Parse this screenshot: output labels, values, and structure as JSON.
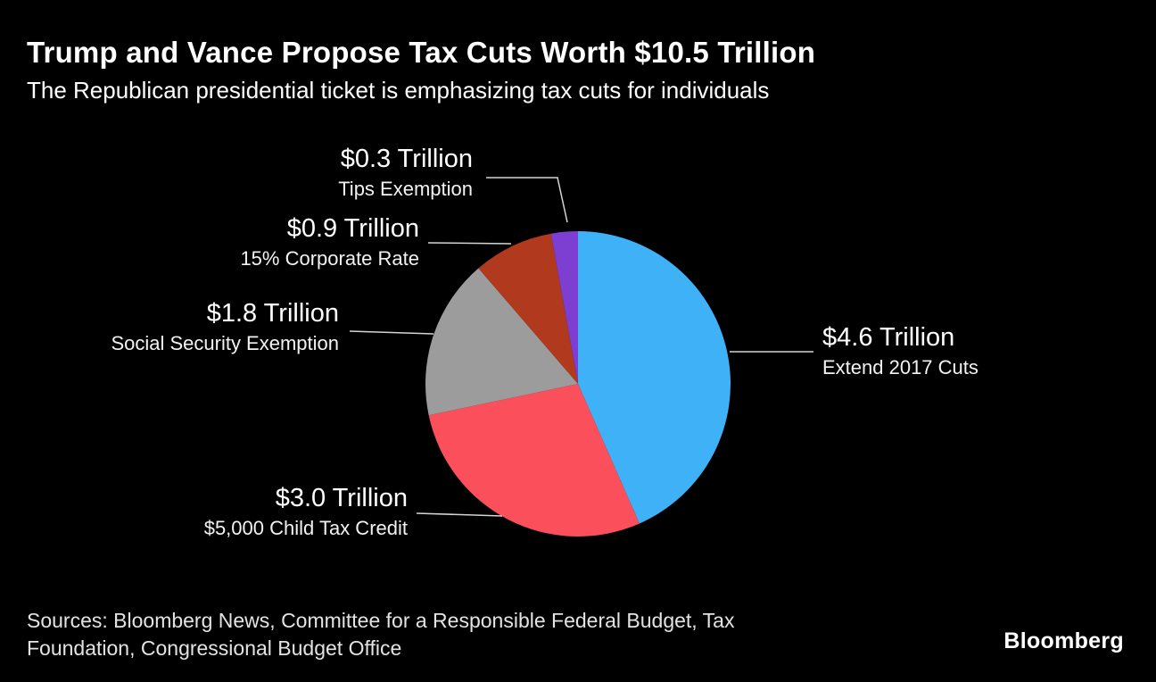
{
  "header": {
    "title": "Trump and Vance Propose Tax Cuts Worth $10.5 Trillion",
    "subtitle": "The Republican presidential ticket is emphasizing tax cuts for individuals"
  },
  "chart_data": {
    "type": "pie",
    "title": "Trump and Vance Propose Tax Cuts Worth $10.5 Trillion",
    "subtitle": "The Republican presidential ticket is emphasizing tax cuts for individuals",
    "units": "Trillion USD",
    "total_label": "$10.5 Trillion",
    "start_angle_deg": 0,
    "direction": "clockwise",
    "legend_position": "callout-labels",
    "slices": [
      {
        "name": "Extend 2017 Cuts",
        "value": 4.6,
        "value_label": "$4.6 Trillion",
        "color": "#3fb1f7"
      },
      {
        "name": "$5,000 Child Tax Credit",
        "value": 3.0,
        "value_label": "$3.0 Trillion",
        "color": "#fb4f5c"
      },
      {
        "name": "Social Security Exemption",
        "value": 1.8,
        "value_label": "$1.8 Trillion",
        "color": "#9c9c9c"
      },
      {
        "name": "15% Corporate Rate",
        "value": 0.9,
        "value_label": "$0.9 Trillion",
        "color": "#b13a1e"
      },
      {
        "name": "Tips Exemption",
        "value": 0.3,
        "value_label": "$0.3 Trillion",
        "color": "#7d3ed2"
      }
    ]
  },
  "footer": {
    "sources_lines": [
      "Sources: Bloomberg News, Committee for a Responsible Federal Budget, Tax",
      "Foundation, Congressional Budget Office"
    ],
    "brand": "Bloomberg"
  }
}
